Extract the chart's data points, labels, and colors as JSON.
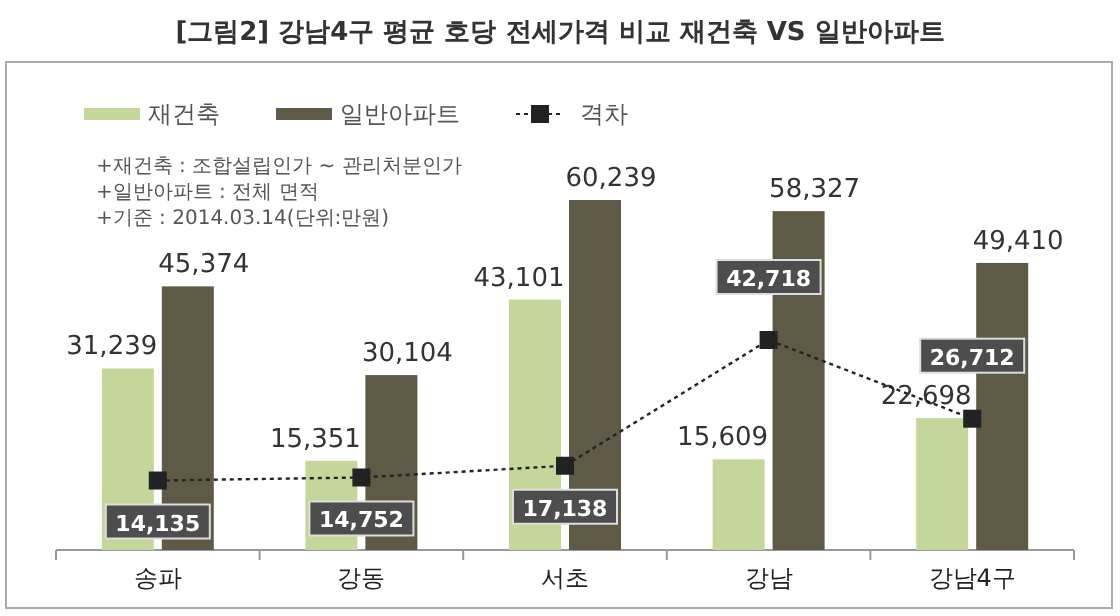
{
  "chart_data": {
    "type": "bar",
    "title": "[그림2] 강남4구 평균 호당 전세가격 비교 재건축 VS 일반아파트",
    "annotations": [
      "+재건축 : 조합설립인가 ~ 관리처분인가",
      "+일반아파트 : 전체 면적",
      "+기준 : 2014.03.14(단위:만원)"
    ],
    "categories": [
      "송파",
      "강동",
      "서초",
      "강남",
      "강남4구"
    ],
    "series": [
      {
        "name": "재건축",
        "color": "#c5d69b",
        "values": [
          31239,
          15351,
          43101,
          15609,
          22698
        ],
        "value_labels": [
          "31,239",
          "15,351",
          "43,101",
          "15,609",
          "22,698"
        ]
      },
      {
        "name": "일반아파트",
        "color": "#5e5a45",
        "values": [
          45374,
          30104,
          60239,
          58327,
          49410
        ],
        "value_labels": [
          "45,374",
          "30,104",
          "60,239",
          "58,327",
          "49,410"
        ]
      },
      {
        "name": "격차",
        "type": "line",
        "axis": "y2",
        "color": "#222222",
        "marker": "square",
        "line_style": "dotted",
        "values": [
          14135,
          14752,
          17138,
          42718,
          26712
        ],
        "value_labels": [
          "14,135",
          "14,752",
          "17,138",
          "42,718",
          "26,712"
        ]
      }
    ],
    "legend": "top left",
    "tick_labels": "x"
  }
}
